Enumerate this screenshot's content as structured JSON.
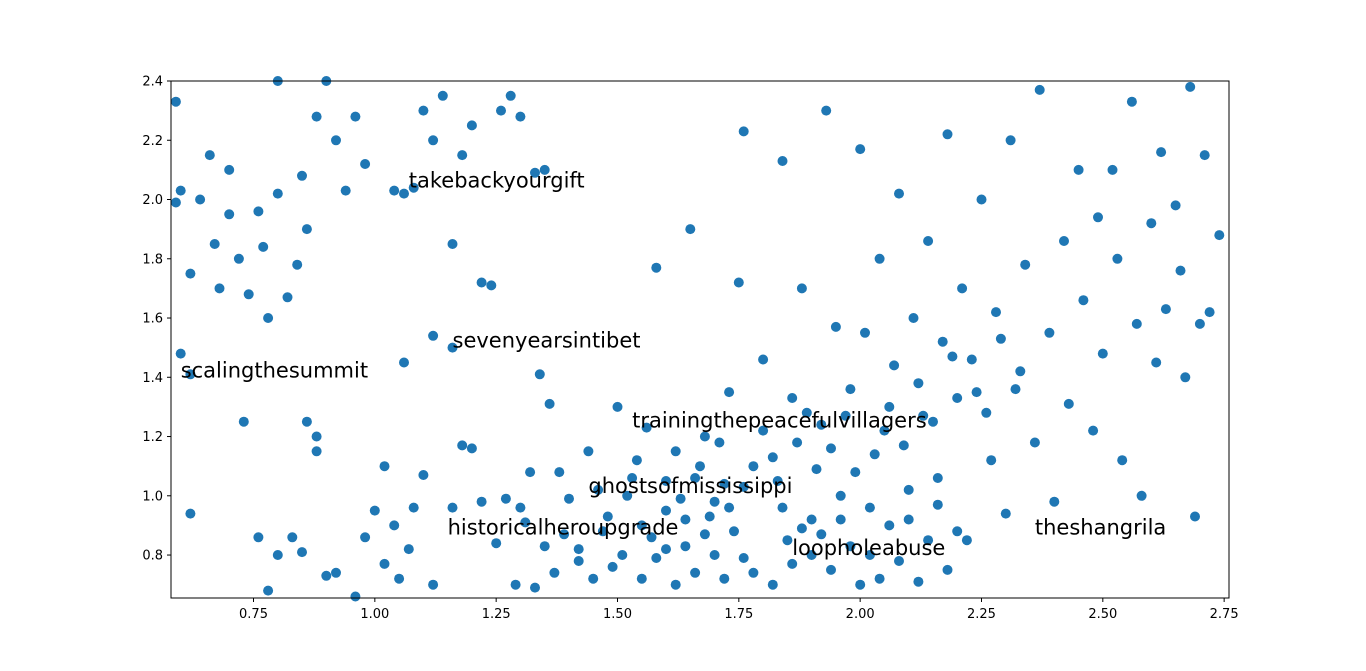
{
  "chart_data": {
    "type": "scatter",
    "xlim": [
      0.58,
      2.76
    ],
    "ylim": [
      0.655,
      2.4
    ],
    "xticks": [
      "0.75",
      "1.00",
      "1.25",
      "1.50",
      "1.75",
      "2.00",
      "2.25",
      "2.50",
      "2.75"
    ],
    "xtick_values": [
      0.75,
      1.0,
      1.25,
      1.5,
      1.75,
      2.0,
      2.25,
      2.5,
      2.75
    ],
    "yticks": [
      "0.8",
      "1.0",
      "1.2",
      "1.4",
      "1.6",
      "1.8",
      "2.0",
      "2.2",
      "2.4"
    ],
    "ytick_values": [
      0.8,
      1.0,
      1.2,
      1.4,
      1.6,
      1.8,
      2.0,
      2.2,
      2.4
    ],
    "grid": false,
    "marker_color": "#1f77b4",
    "annotations": [
      {
        "text": "takebackyourgift",
        "x": 1.07,
        "y": 2.04
      },
      {
        "text": "sevenyearsintibet",
        "x": 1.16,
        "y": 1.5
      },
      {
        "text": "scalingthesummit",
        "x": 0.6,
        "y": 1.4
      },
      {
        "text": "trainingthepeacefulvillagers",
        "x": 1.53,
        "y": 1.23
      },
      {
        "text": "ghostsofmississippi",
        "x": 1.44,
        "y": 1.01
      },
      {
        "text": "historicalheroupgrade",
        "x": 1.15,
        "y": 0.87
      },
      {
        "text": "theshangrila",
        "x": 2.36,
        "y": 0.87
      },
      {
        "text": "loopholeabuse",
        "x": 1.86,
        "y": 0.8
      }
    ],
    "points": [
      [
        0.59,
        2.33
      ],
      [
        0.6,
        2.03
      ],
      [
        0.59,
        1.99
      ],
      [
        0.62,
        1.75
      ],
      [
        0.64,
        2.0
      ],
      [
        0.66,
        2.15
      ],
      [
        0.67,
        1.85
      ],
      [
        0.68,
        1.7
      ],
      [
        0.7,
        2.1
      ],
      [
        0.7,
        1.95
      ],
      [
        0.72,
        1.8
      ],
      [
        0.74,
        1.68
      ],
      [
        0.76,
        1.96
      ],
      [
        0.77,
        1.84
      ],
      [
        0.78,
        1.6
      ],
      [
        0.8,
        2.02
      ],
      [
        0.8,
        2.4
      ],
      [
        0.82,
        1.67
      ],
      [
        0.84,
        1.78
      ],
      [
        0.85,
        2.08
      ],
      [
        0.86,
        1.9
      ],
      [
        0.88,
        2.28
      ],
      [
        0.9,
        2.4
      ],
      [
        0.92,
        2.2
      ],
      [
        0.94,
        2.03
      ],
      [
        0.96,
        2.28
      ],
      [
        0.98,
        2.12
      ],
      [
        0.6,
        1.48
      ],
      [
        0.62,
        1.41
      ],
      [
        0.62,
        0.94
      ],
      [
        0.73,
        1.25
      ],
      [
        0.76,
        0.86
      ],
      [
        0.78,
        0.68
      ],
      [
        0.8,
        0.8
      ],
      [
        0.83,
        0.86
      ],
      [
        0.85,
        0.81
      ],
      [
        0.86,
        1.25
      ],
      [
        0.88,
        1.2
      ],
      [
        0.88,
        1.15
      ],
      [
        0.9,
        0.73
      ],
      [
        0.92,
        0.74
      ],
      [
        0.96,
        0.66
      ],
      [
        0.98,
        0.86
      ],
      [
        1.0,
        0.95
      ],
      [
        1.02,
        0.77
      ],
      [
        1.04,
        0.9
      ],
      [
        1.05,
        0.72
      ],
      [
        1.07,
        0.82
      ],
      [
        1.08,
        0.96
      ],
      [
        1.1,
        1.07
      ],
      [
        1.12,
        0.7
      ],
      [
        1.04,
        2.03
      ],
      [
        1.06,
        2.02
      ],
      [
        1.08,
        2.04
      ],
      [
        1.1,
        2.3
      ],
      [
        1.12,
        2.2
      ],
      [
        1.14,
        2.35
      ],
      [
        1.16,
        1.85
      ],
      [
        1.18,
        2.15
      ],
      [
        1.2,
        2.25
      ],
      [
        1.22,
        1.72
      ],
      [
        1.24,
        1.71
      ],
      [
        1.26,
        2.3
      ],
      [
        1.28,
        2.35
      ],
      [
        1.3,
        2.28
      ],
      [
        1.33,
        2.09
      ],
      [
        1.35,
        2.1
      ],
      [
        1.12,
        1.54
      ],
      [
        1.16,
        1.5
      ],
      [
        1.06,
        1.45
      ],
      [
        1.02,
        1.1
      ],
      [
        1.16,
        0.96
      ],
      [
        1.18,
        1.17
      ],
      [
        1.2,
        1.16
      ],
      [
        1.22,
        0.98
      ],
      [
        1.25,
        0.84
      ],
      [
        1.27,
        0.99
      ],
      [
        1.29,
        0.7
      ],
      [
        1.3,
        0.96
      ],
      [
        1.32,
        1.08
      ],
      [
        1.34,
        1.41
      ],
      [
        1.36,
        1.31
      ],
      [
        1.38,
        1.08
      ],
      [
        1.4,
        0.99
      ],
      [
        1.42,
        0.82
      ],
      [
        1.44,
        1.15
      ],
      [
        1.46,
        1.02
      ],
      [
        1.48,
        0.93
      ],
      [
        1.5,
        1.3
      ],
      [
        1.51,
        0.8
      ],
      [
        1.53,
        1.06
      ],
      [
        1.55,
        0.9
      ],
      [
        1.56,
        1.23
      ],
      [
        1.58,
        1.77
      ],
      [
        1.6,
        0.82
      ],
      [
        1.62,
        1.15
      ],
      [
        1.64,
        0.92
      ],
      [
        1.65,
        1.9
      ],
      [
        1.66,
        1.06
      ],
      [
        1.68,
        1.2
      ],
      [
        1.7,
        0.98
      ],
      [
        1.72,
        1.04
      ],
      [
        1.73,
        1.35
      ],
      [
        1.75,
        1.72
      ],
      [
        1.76,
        2.23
      ],
      [
        1.78,
        0.74
      ],
      [
        1.8,
        1.46
      ],
      [
        1.82,
        1.13
      ],
      [
        1.84,
        2.13
      ],
      [
        1.85,
        0.85
      ],
      [
        1.86,
        1.33
      ],
      [
        1.88,
        1.7
      ],
      [
        1.9,
        0.92
      ],
      [
        1.92,
        1.24
      ],
      [
        1.93,
        2.3
      ],
      [
        1.95,
        1.57
      ],
      [
        1.96,
        1.0
      ],
      [
        1.98,
        1.36
      ],
      [
        2.0,
        2.17
      ],
      [
        2.01,
        1.55
      ],
      [
        2.02,
        0.96
      ],
      [
        2.04,
        1.8
      ],
      [
        2.05,
        1.22
      ],
      [
        2.07,
        1.44
      ],
      [
        2.08,
        2.02
      ],
      [
        2.1,
        0.92
      ],
      [
        2.11,
        1.6
      ],
      [
        2.13,
        1.27
      ],
      [
        2.14,
        1.86
      ],
      [
        2.16,
        1.06
      ],
      [
        2.18,
        2.22
      ],
      [
        2.19,
        1.47
      ],
      [
        2.21,
        1.7
      ],
      [
        2.22,
        0.85
      ],
      [
        2.24,
        1.35
      ],
      [
        2.25,
        2.0
      ],
      [
        2.27,
        1.12
      ],
      [
        2.28,
        1.62
      ],
      [
        2.3,
        0.94
      ],
      [
        2.31,
        2.2
      ],
      [
        2.33,
        1.42
      ],
      [
        2.34,
        1.78
      ],
      [
        2.36,
        1.18
      ],
      [
        2.37,
        2.37
      ],
      [
        2.39,
        1.55
      ],
      [
        2.4,
        0.98
      ],
      [
        2.42,
        1.86
      ],
      [
        2.43,
        1.31
      ],
      [
        2.45,
        2.1
      ],
      [
        2.46,
        1.66
      ],
      [
        2.48,
        1.22
      ],
      [
        2.49,
        1.94
      ],
      [
        2.5,
        1.48
      ],
      [
        2.52,
        2.1
      ],
      [
        2.53,
        1.8
      ],
      [
        2.54,
        1.12
      ],
      [
        2.56,
        2.33
      ],
      [
        2.57,
        1.58
      ],
      [
        2.58,
        1.0
      ],
      [
        2.6,
        1.92
      ],
      [
        2.61,
        1.45
      ],
      [
        2.62,
        2.16
      ],
      [
        2.63,
        1.63
      ],
      [
        2.65,
        1.98
      ],
      [
        2.66,
        1.76
      ],
      [
        2.67,
        1.4
      ],
      [
        2.68,
        2.38
      ],
      [
        2.69,
        0.93
      ],
      [
        2.7,
        1.58
      ],
      [
        2.71,
        2.15
      ],
      [
        2.72,
        1.62
      ],
      [
        2.74,
        1.88
      ],
      [
        1.82,
        0.7
      ],
      [
        1.84,
        0.96
      ],
      [
        1.86,
        0.77
      ],
      [
        1.88,
        0.89
      ],
      [
        1.9,
        0.8
      ],
      [
        1.92,
        0.87
      ],
      [
        1.94,
        0.75
      ],
      [
        1.96,
        0.92
      ],
      [
        1.98,
        0.83
      ],
      [
        2.0,
        0.7
      ],
      [
        1.76,
        0.79
      ],
      [
        1.74,
        0.88
      ],
      [
        1.72,
        0.72
      ],
      [
        1.7,
        0.8
      ],
      [
        1.68,
        0.87
      ],
      [
        1.66,
        0.74
      ],
      [
        1.64,
        0.83
      ],
      [
        1.62,
        0.7
      ],
      [
        1.6,
        0.95
      ],
      [
        1.58,
        0.79
      ],
      [
        2.02,
        0.8
      ],
      [
        2.04,
        0.72
      ],
      [
        2.06,
        0.9
      ],
      [
        2.08,
        0.78
      ],
      [
        2.1,
        1.02
      ],
      [
        2.12,
        0.71
      ],
      [
        2.14,
        0.85
      ],
      [
        2.16,
        0.97
      ],
      [
        2.18,
        0.75
      ],
      [
        2.2,
        0.88
      ],
      [
        1.78,
        1.1
      ],
      [
        1.8,
        1.22
      ],
      [
        1.83,
        1.05
      ],
      [
        1.87,
        1.18
      ],
      [
        1.89,
        1.28
      ],
      [
        1.91,
        1.09
      ],
      [
        1.94,
        1.16
      ],
      [
        1.97,
        1.27
      ],
      [
        1.99,
        1.08
      ],
      [
        2.03,
        1.14
      ],
      [
        2.06,
        1.3
      ],
      [
        2.09,
        1.17
      ],
      [
        2.12,
        1.38
      ],
      [
        2.15,
        1.25
      ],
      [
        2.17,
        1.52
      ],
      [
        2.2,
        1.33
      ],
      [
        2.23,
        1.46
      ],
      [
        2.26,
        1.28
      ],
      [
        2.29,
        1.53
      ],
      [
        2.32,
        1.36
      ],
      [
        1.52,
        1.0
      ],
      [
        1.54,
        1.12
      ],
      [
        1.57,
        0.86
      ],
      [
        1.6,
        1.05
      ],
      [
        1.63,
        0.99
      ],
      [
        1.67,
        1.1
      ],
      [
        1.69,
        0.93
      ],
      [
        1.71,
        1.18
      ],
      [
        1.73,
        0.96
      ],
      [
        1.76,
        1.03
      ],
      [
        1.45,
        0.72
      ],
      [
        1.42,
        0.78
      ],
      [
        1.39,
        0.87
      ],
      [
        1.37,
        0.74
      ],
      [
        1.35,
        0.83
      ],
      [
        1.33,
        0.69
      ],
      [
        1.31,
        0.91
      ],
      [
        1.47,
        0.88
      ],
      [
        1.49,
        0.76
      ],
      [
        1.55,
        0.72
      ]
    ]
  }
}
